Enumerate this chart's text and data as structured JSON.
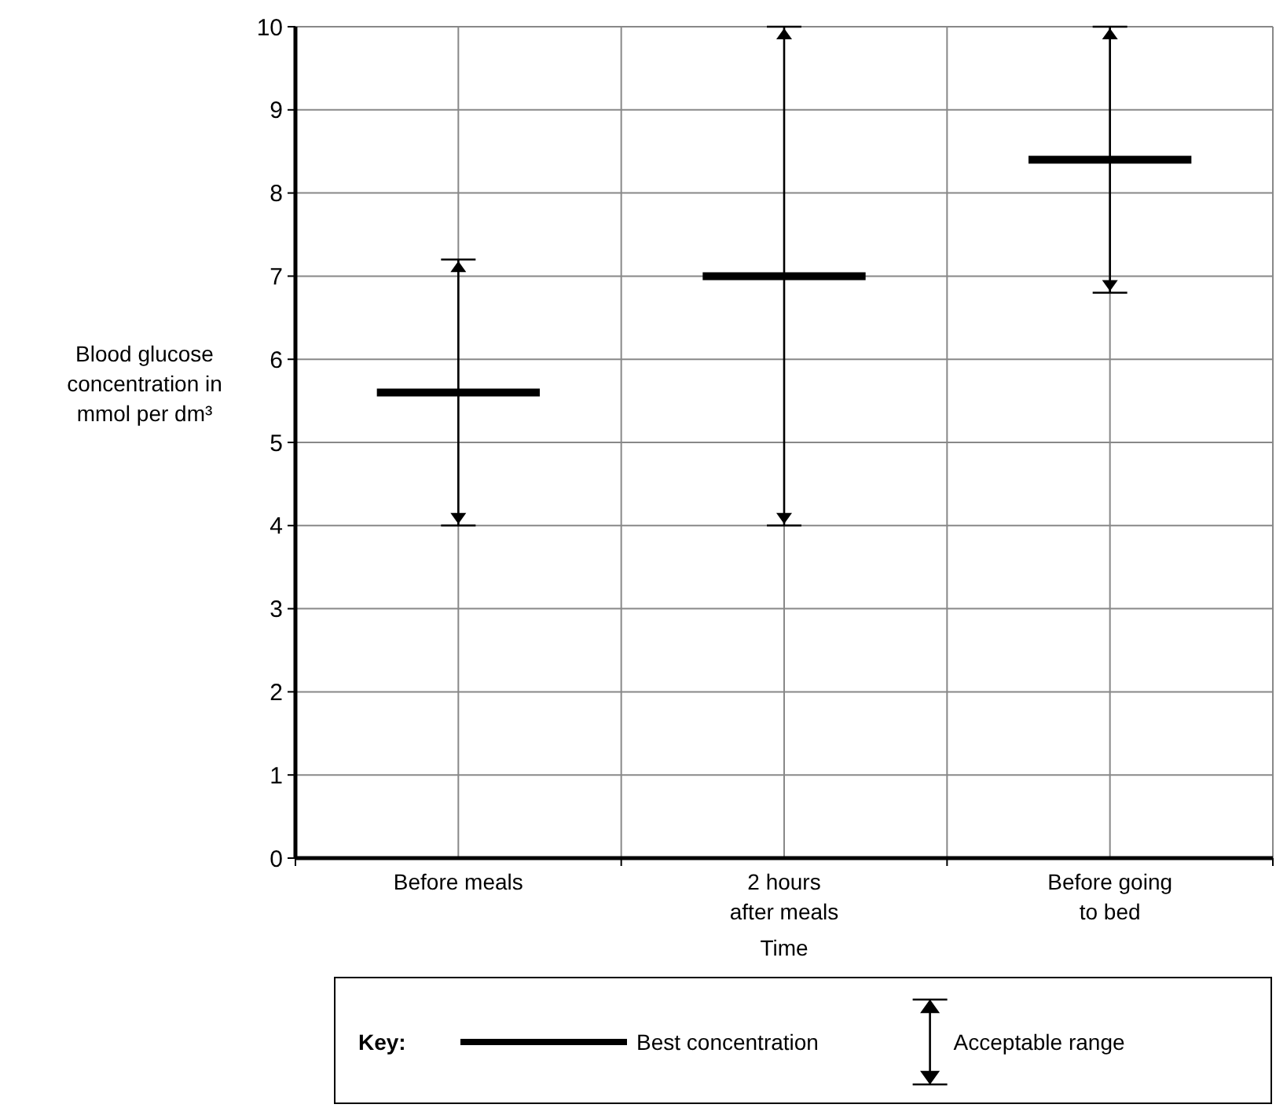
{
  "chart_data": {
    "type": "line",
    "xlabel": "Time",
    "ylabel": "Blood glucose concentration in mmol per dm³",
    "legend_title": "Key:",
    "categories": [
      null,
      null,
      "Before meals",
      null,
      null,
      null,
      "2 hours after meals",
      null,
      null,
      null,
      "Before going to bed",
      null,
      null
    ],
    "series": [
      {
        "name": "Best concentration",
        "color": "#000000",
        "values": [
          null,
          5.6,
          5.6,
          5.6,
          null,
          7,
          7,
          7,
          null,
          8.4,
          8.4,
          8.4,
          null
        ],
        "errors": [
          null,
          null,
          [
            4,
            7.2
          ],
          null,
          null,
          null,
          [
            4,
            10
          ],
          null,
          null,
          null,
          [
            6.8,
            10
          ],
          null,
          null
        ]
      }
    ],
    "annotations": [
      "Acceptable range"
    ],
    "ylim": [
      0,
      10
    ],
    "yticks": [
      0,
      1,
      2,
      3,
      4,
      5,
      6,
      7,
      8,
      9,
      10
    ],
    "grid": true,
    "legend": "bottom"
  }
}
